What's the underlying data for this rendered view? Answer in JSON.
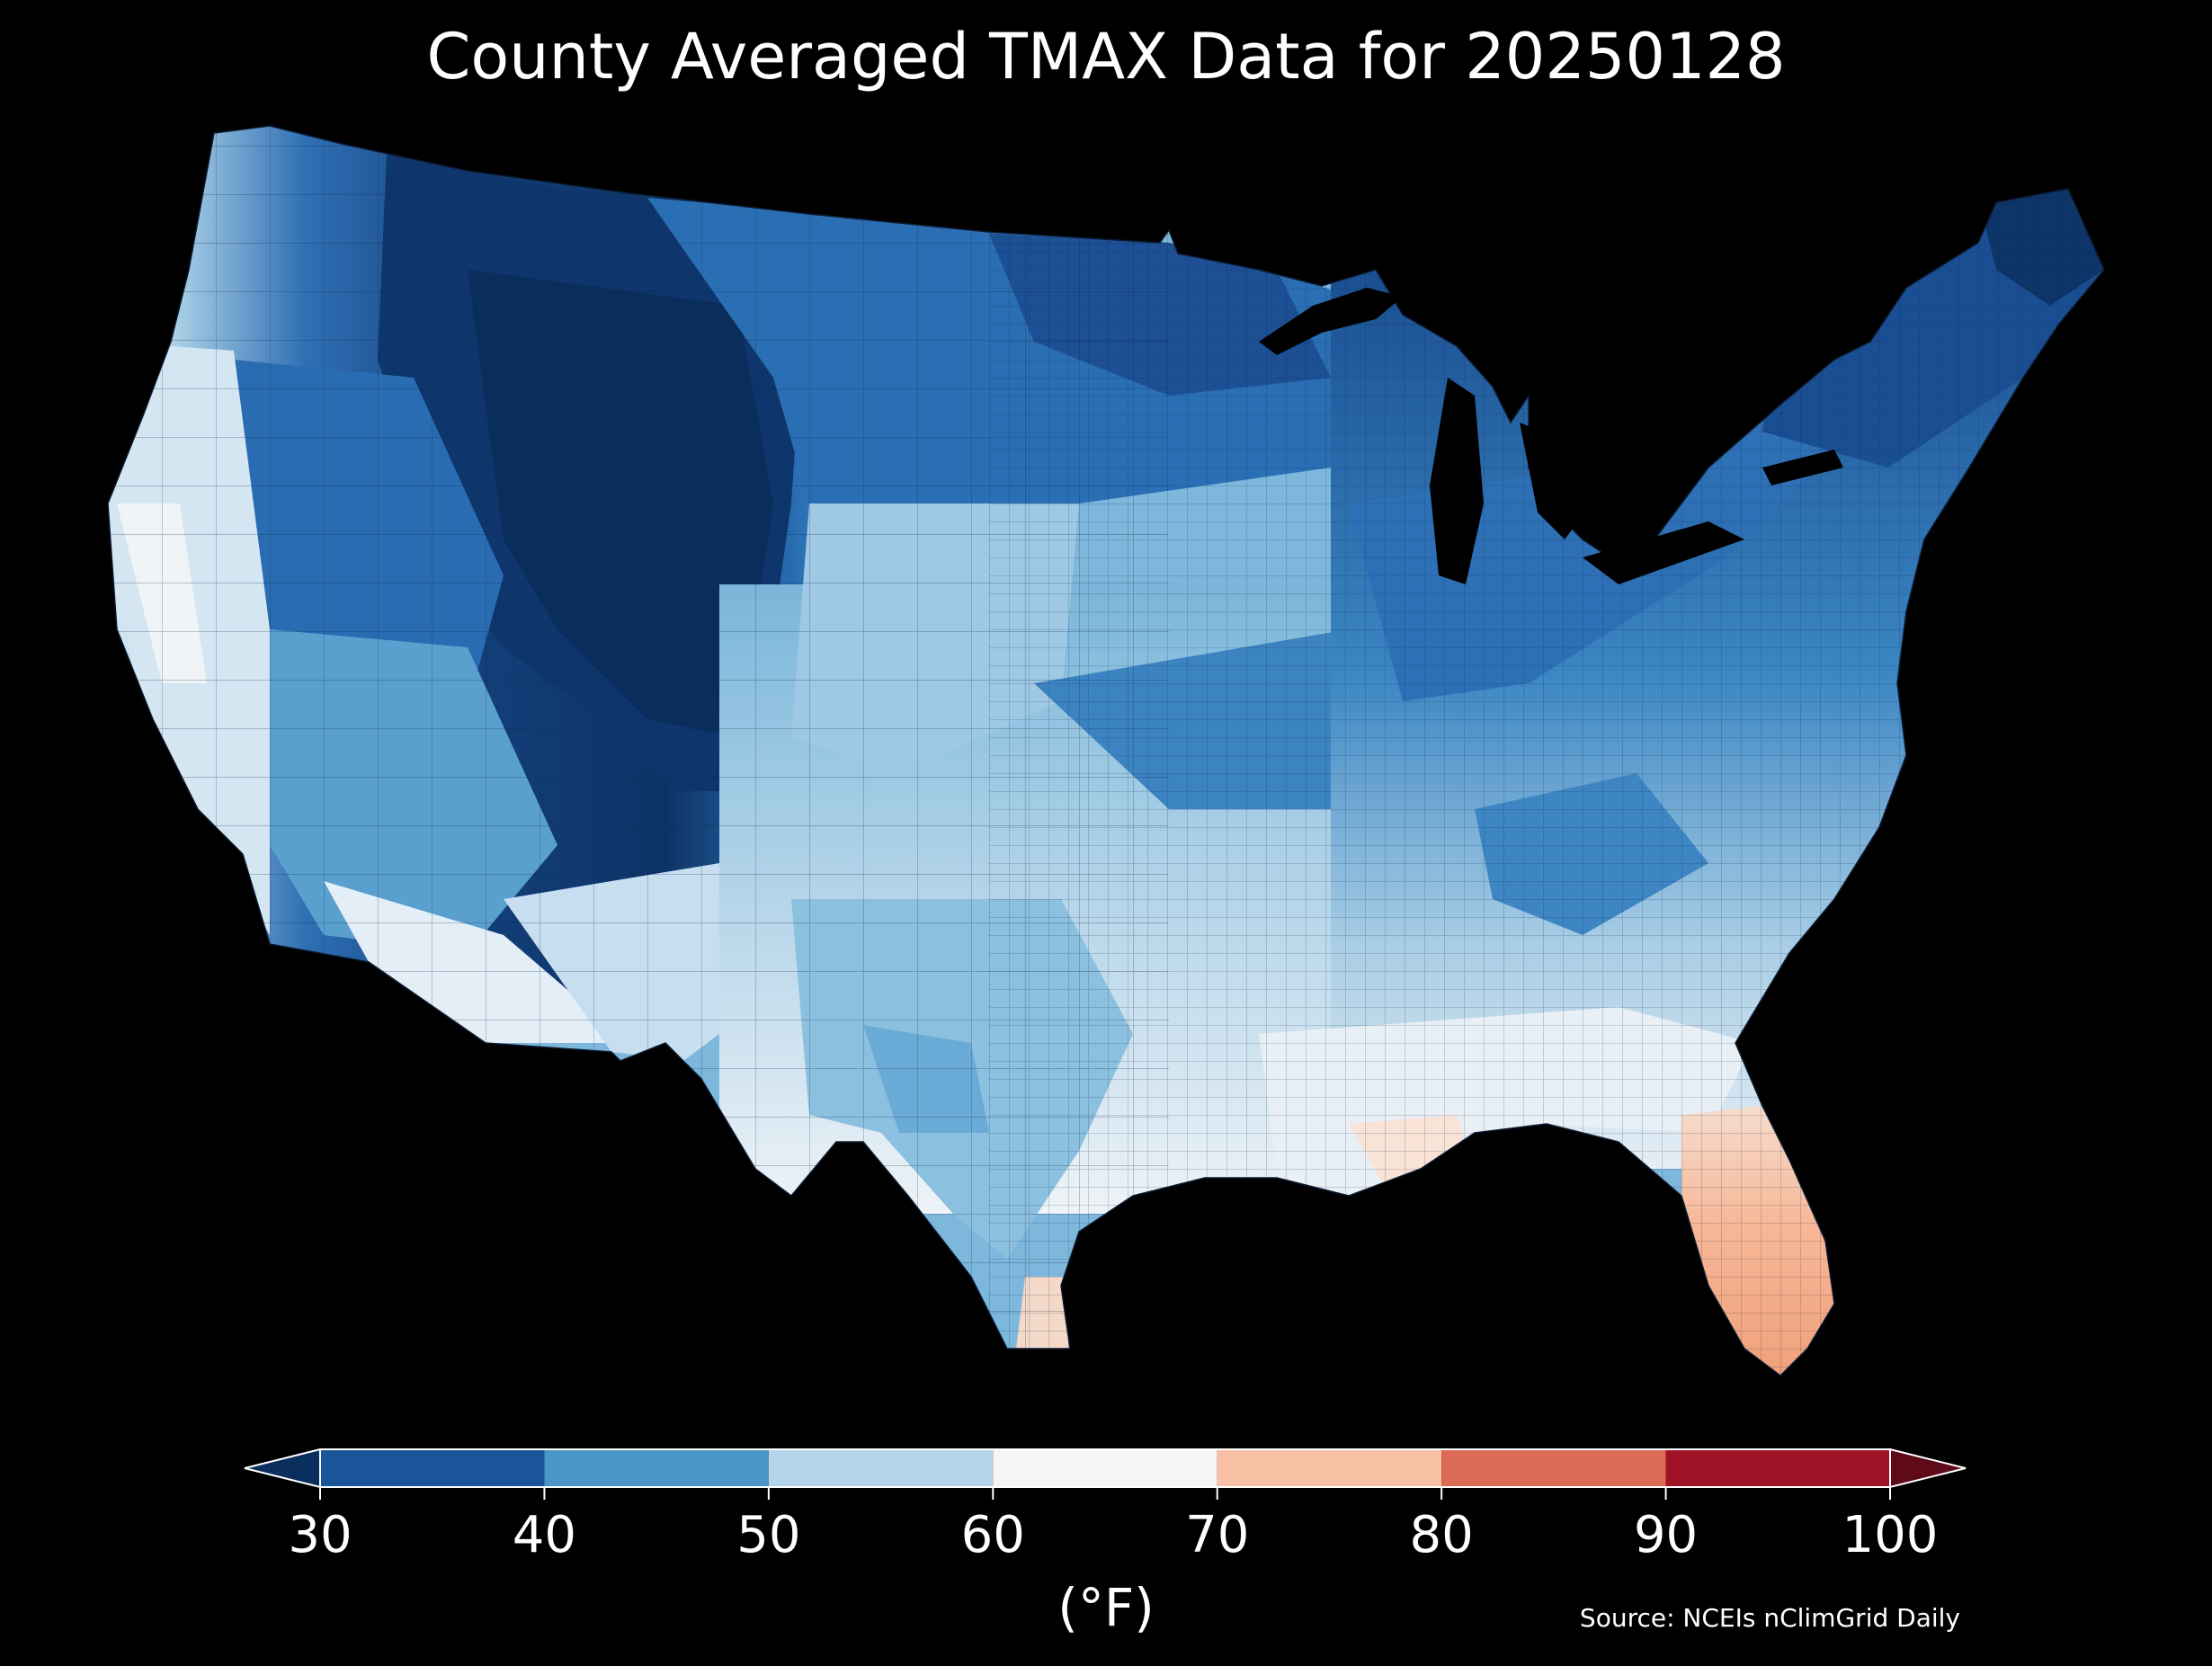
{
  "title": "County Averaged TMAX Data for 20250128",
  "legend": {
    "unit": "(°F)",
    "ticks": [
      "30",
      "40",
      "50",
      "60",
      "70",
      "80",
      "90",
      "100"
    ],
    "bins": [
      {
        "range": [
          30,
          40
        ],
        "color": "#1a5499"
      },
      {
        "range": [
          40,
          50
        ],
        "color": "#4a96c8"
      },
      {
        "range": [
          50,
          60
        ],
        "color": "#b4d5e9"
      },
      {
        "range": [
          60,
          70
        ],
        "color": "#f5f5f5"
      },
      {
        "range": [
          70,
          80
        ],
        "color": "#f8c0a4"
      },
      {
        "range": [
          80,
          90
        ],
        "color": "#dd6a55"
      },
      {
        "range": [
          90,
          100
        ],
        "color": "#a01327"
      }
    ],
    "under_color": "#0a2e5e",
    "over_color": "#5e0a18",
    "extend": "both"
  },
  "source": "Source: NCEIs nClimGrid Daily",
  "map": {
    "region": "contiguous-united-states",
    "unit_level": "county",
    "background_color": "#000000",
    "land_colors": {
      "coldest": "#0b2d5c",
      "cold": "#1c5ea8",
      "cool": "#3a86c2",
      "mild": "#7fb9dc",
      "warmish": "#c4ddee",
      "neutral": "#eef4f8",
      "warm": "#f6c4aa",
      "hot": "#f1a37e"
    }
  }
}
